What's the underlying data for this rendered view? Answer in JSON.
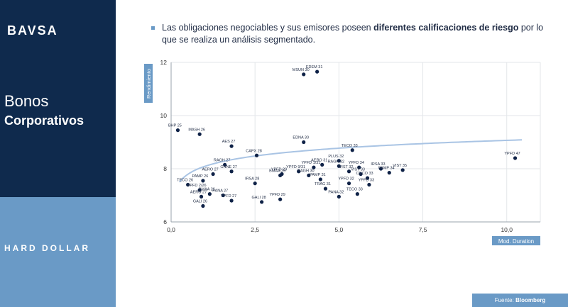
{
  "sidebar": {
    "logo": "BAVSA",
    "title_line1": "Bonos",
    "title_line2": "Corporativos",
    "section_label": "HARD DOLLAR"
  },
  "header": {
    "text_before": "Las obligaciones negociables y sus emisores poseen ",
    "text_bold": "diferentes calificaciones de riesgo",
    "text_after": " por lo que se realiza un análisis segmentado."
  },
  "footer": {
    "source_prefix": "Fuente: ",
    "source_name": "Bloomberg"
  },
  "colors": {
    "sidebar_dark": "#0f2a4d",
    "sidebar_light": "#6a9ac6",
    "points": "#0f2247",
    "trend": "#a9c4e4"
  },
  "chart_data": {
    "type": "scatter",
    "xlabel": "Mod. Duration",
    "ylabel": "Rendimiento",
    "xlim": [
      0,
      11
    ],
    "ylim": [
      6,
      12
    ],
    "xticks": [
      "0,0",
      "2,5",
      "5,0",
      "7,5",
      "10,0"
    ],
    "yticks": [
      "6",
      "8",
      "10",
      "12"
    ],
    "grid": true,
    "trendline": "logarithmic",
    "points": [
      {
        "label": "MSUN 30",
        "x": 3.95,
        "y": 11.55
      },
      {
        "label": "EDEM 31",
        "x": 4.35,
        "y": 11.65
      },
      {
        "label": "BHP 25",
        "x": 0.2,
        "y": 9.45
      },
      {
        "label": "MASH 26",
        "x": 0.85,
        "y": 9.3
      },
      {
        "label": "AES 27",
        "x": 1.8,
        "y": 8.85
      },
      {
        "label": "CAPX 28",
        "x": 2.55,
        "y": 8.5
      },
      {
        "label": "EDNA 30",
        "x": 3.95,
        "y": 9.0
      },
      {
        "label": "TECO 33",
        "x": 5.4,
        "y": 8.7
      },
      {
        "label": "YPFD 47",
        "x": 10.25,
        "y": 8.4
      },
      {
        "label": "PLUS 32",
        "x": 5.0,
        "y": 8.3
      },
      {
        "label": "YPFD 29",
        "x": 3.3,
        "y": 7.8
      },
      {
        "label": "YPFD 1/31",
        "x": 4.25,
        "y": 8.05
      },
      {
        "label": "RAGH 27",
        "x": 1.6,
        "y": 8.15
      },
      {
        "label": "GNNE 27",
        "x": 1.8,
        "y": 7.9
      },
      {
        "label": "AERO 27",
        "x": 1.25,
        "y": 7.8
      },
      {
        "label": "PAMP 26",
        "x": 0.95,
        "y": 7.55
      },
      {
        "label": "TECO 26",
        "x": 0.5,
        "y": 7.4
      },
      {
        "label": "YPFD 2/26",
        "x": 0.85,
        "y": 7.2
      },
      {
        "label": "BMAA 26",
        "x": 1.15,
        "y": 7.05
      },
      {
        "label": "AERO 27",
        "x": 0.9,
        "y": 6.95
      },
      {
        "label": "GALI 26",
        "x": 0.95,
        "y": 6.6
      },
      {
        "label": "PANA 27",
        "x": 1.55,
        "y": 7.0
      },
      {
        "label": "YPFD 27",
        "x": 1.8,
        "y": 6.8
      },
      {
        "label": "IRSA 28",
        "x": 2.5,
        "y": 7.45
      },
      {
        "label": "GALI 28",
        "x": 2.7,
        "y": 6.75
      },
      {
        "label": "YPFD 29",
        "x": 3.25,
        "y": 6.85
      },
      {
        "label": "BMAA 29",
        "x": 3.25,
        "y": 7.75
      },
      {
        "label": "YPFD 9/31",
        "x": 3.8,
        "y": 7.9
      },
      {
        "label": "RAGH 30",
        "x": 4.1,
        "y": 7.75
      },
      {
        "label": "PAMP 31",
        "x": 4.45,
        "y": 7.6
      },
      {
        "label": "TRAG 31",
        "x": 4.6,
        "y": 7.25
      },
      {
        "label": "AERO 31",
        "x": 4.5,
        "y": 8.15
      },
      {
        "label": "RAGH 32",
        "x": 5.0,
        "y": 8.1
      },
      {
        "label": "VIST 32",
        "x": 5.3,
        "y": 7.9
      },
      {
        "label": "YPFD 32",
        "x": 5.3,
        "y": 7.45
      },
      {
        "label": "PANA 32",
        "x": 5.0,
        "y": 6.95
      },
      {
        "label": "YPFD 34",
        "x": 5.6,
        "y": 8.05
      },
      {
        "label": "TECO 33",
        "x": 5.55,
        "y": 7.05
      },
      {
        "label": "VIST 33",
        "x": 5.65,
        "y": 7.8
      },
      {
        "label": "CGCO 33",
        "x": 5.85,
        "y": 7.65
      },
      {
        "label": "YPFD 33",
        "x": 5.9,
        "y": 7.4
      },
      {
        "label": "IRSA 33",
        "x": 6.25,
        "y": 8.0
      },
      {
        "label": "PAMP 34",
        "x": 6.5,
        "y": 7.85
      },
      {
        "label": "VIST 35",
        "x": 6.9,
        "y": 7.95
      }
    ]
  }
}
